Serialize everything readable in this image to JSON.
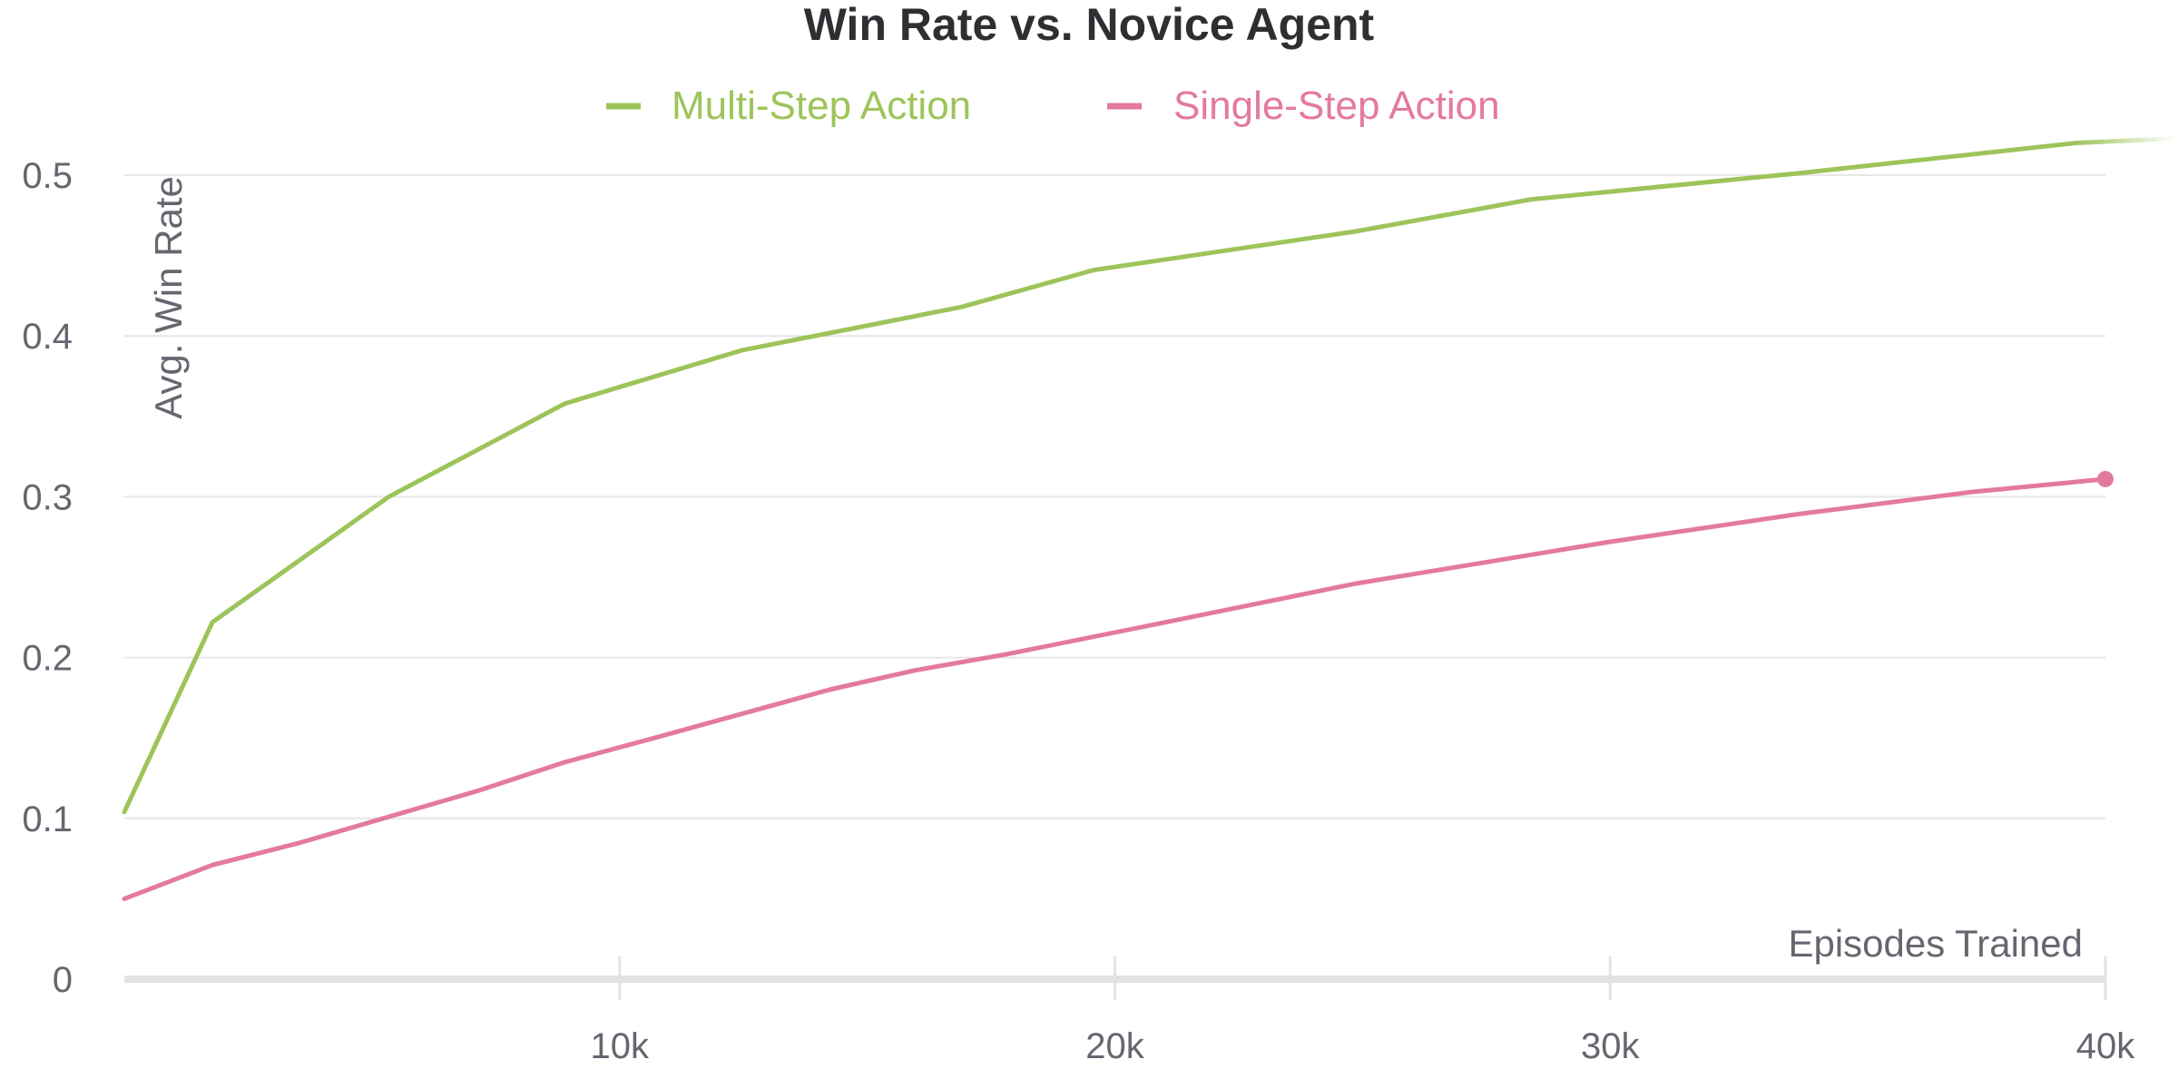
{
  "chart_data": {
    "type": "line",
    "title": "Win Rate vs. Novice Agent",
    "xlabel": "Episodes Trained",
    "ylabel": "Avg. Win Rate",
    "xlim": [
      0,
      40000
    ],
    "ylim": [
      0,
      0.55
    ],
    "x_ticks": [
      {
        "value": 10000,
        "label": "10k"
      },
      {
        "value": 20000,
        "label": "20k"
      },
      {
        "value": 30000,
        "label": "30k"
      },
      {
        "value": 40000,
        "label": "40k"
      }
    ],
    "y_ticks": [
      {
        "value": 0,
        "label": "0"
      },
      {
        "value": 0.1,
        "label": "0.1"
      },
      {
        "value": 0.2,
        "label": "0.2"
      },
      {
        "value": 0.3,
        "label": "0.3"
      },
      {
        "value": 0.4,
        "label": "0.4"
      },
      {
        "value": 0.5,
        "label": "0.5"
      }
    ],
    "grid": true,
    "legend_position": "top-center",
    "series": [
      {
        "name": "Multi-Step Action",
        "color": "#9dc45a",
        "x": [
          0,
          1780,
          5340,
          8900,
          12460,
          16900,
          19580,
          24860,
          28420,
          33750,
          39400
        ],
        "values": [
          0.104,
          0.222,
          0.3,
          0.358,
          0.391,
          0.418,
          0.441,
          0.465,
          0.485,
          0.501,
          0.52
        ]
      },
      {
        "name": "Single-Step Action",
        "color": "#e4799f",
        "x": [
          0,
          1780,
          3560,
          7120,
          8900,
          10700,
          14240,
          15950,
          17800,
          21350,
          24860,
          28420,
          30000,
          33750,
          37300,
          40000
        ],
        "values": [
          0.05,
          0.071,
          0.085,
          0.117,
          0.135,
          0.15,
          0.18,
          0.192,
          0.202,
          0.224,
          0.246,
          0.264,
          0.272,
          0.289,
          0.303,
          0.311
        ]
      }
    ]
  }
}
